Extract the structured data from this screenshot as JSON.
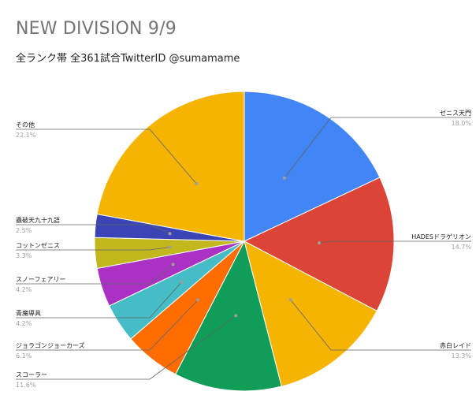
{
  "chart_data": {
    "type": "pie",
    "title": "NEW DIVISION 9/9",
    "subtitle": "全ランク帯 全361試合TwitterID @sumamame",
    "slices": [
      {
        "label": "ゼニス天門",
        "pct_text": "18.0%",
        "value": 18.0,
        "color": "#4285f4",
        "label_side": "right"
      },
      {
        "label": "HADESドラゲリオン",
        "pct_text": "14.7%",
        "value": 14.7,
        "color": "#db4437",
        "label_side": "right"
      },
      {
        "label": "赤白レイド",
        "pct_text": "13.3%",
        "value": 13.3,
        "color": "#f4b400",
        "label_side": "right"
      },
      {
        "label": "スコーラー",
        "pct_text": "11.6%",
        "value": 11.6,
        "color": "#0f9d58",
        "label_side": "left"
      },
      {
        "label": "ジョラゴンジョーカーズ",
        "pct_text": "6.1%",
        "value": 6.1,
        "color": "#ff6d01",
        "label_side": "left"
      },
      {
        "label": "青魔導具",
        "pct_text": "4.2%",
        "value": 4.2,
        "color": "#46bdc6",
        "label_side": "left"
      },
      {
        "label": "スノーフェアリー",
        "pct_text": "4.2%",
        "value": 4.2,
        "color": "#ab30c4",
        "label_side": "left"
      },
      {
        "label": "コットンゼニス",
        "pct_text": "3.3%",
        "value": 3.3,
        "color": "#c2b71c",
        "label_side": "left"
      },
      {
        "label": "蟲破天九十九語",
        "pct_text": "2.5%",
        "value": 2.5,
        "color": "#3b44b5",
        "label_side": "left"
      },
      {
        "label": "その他",
        "pct_text": "22.1%",
        "value": 22.1,
        "color": "#f4b400",
        "label_side": "left"
      }
    ]
  }
}
